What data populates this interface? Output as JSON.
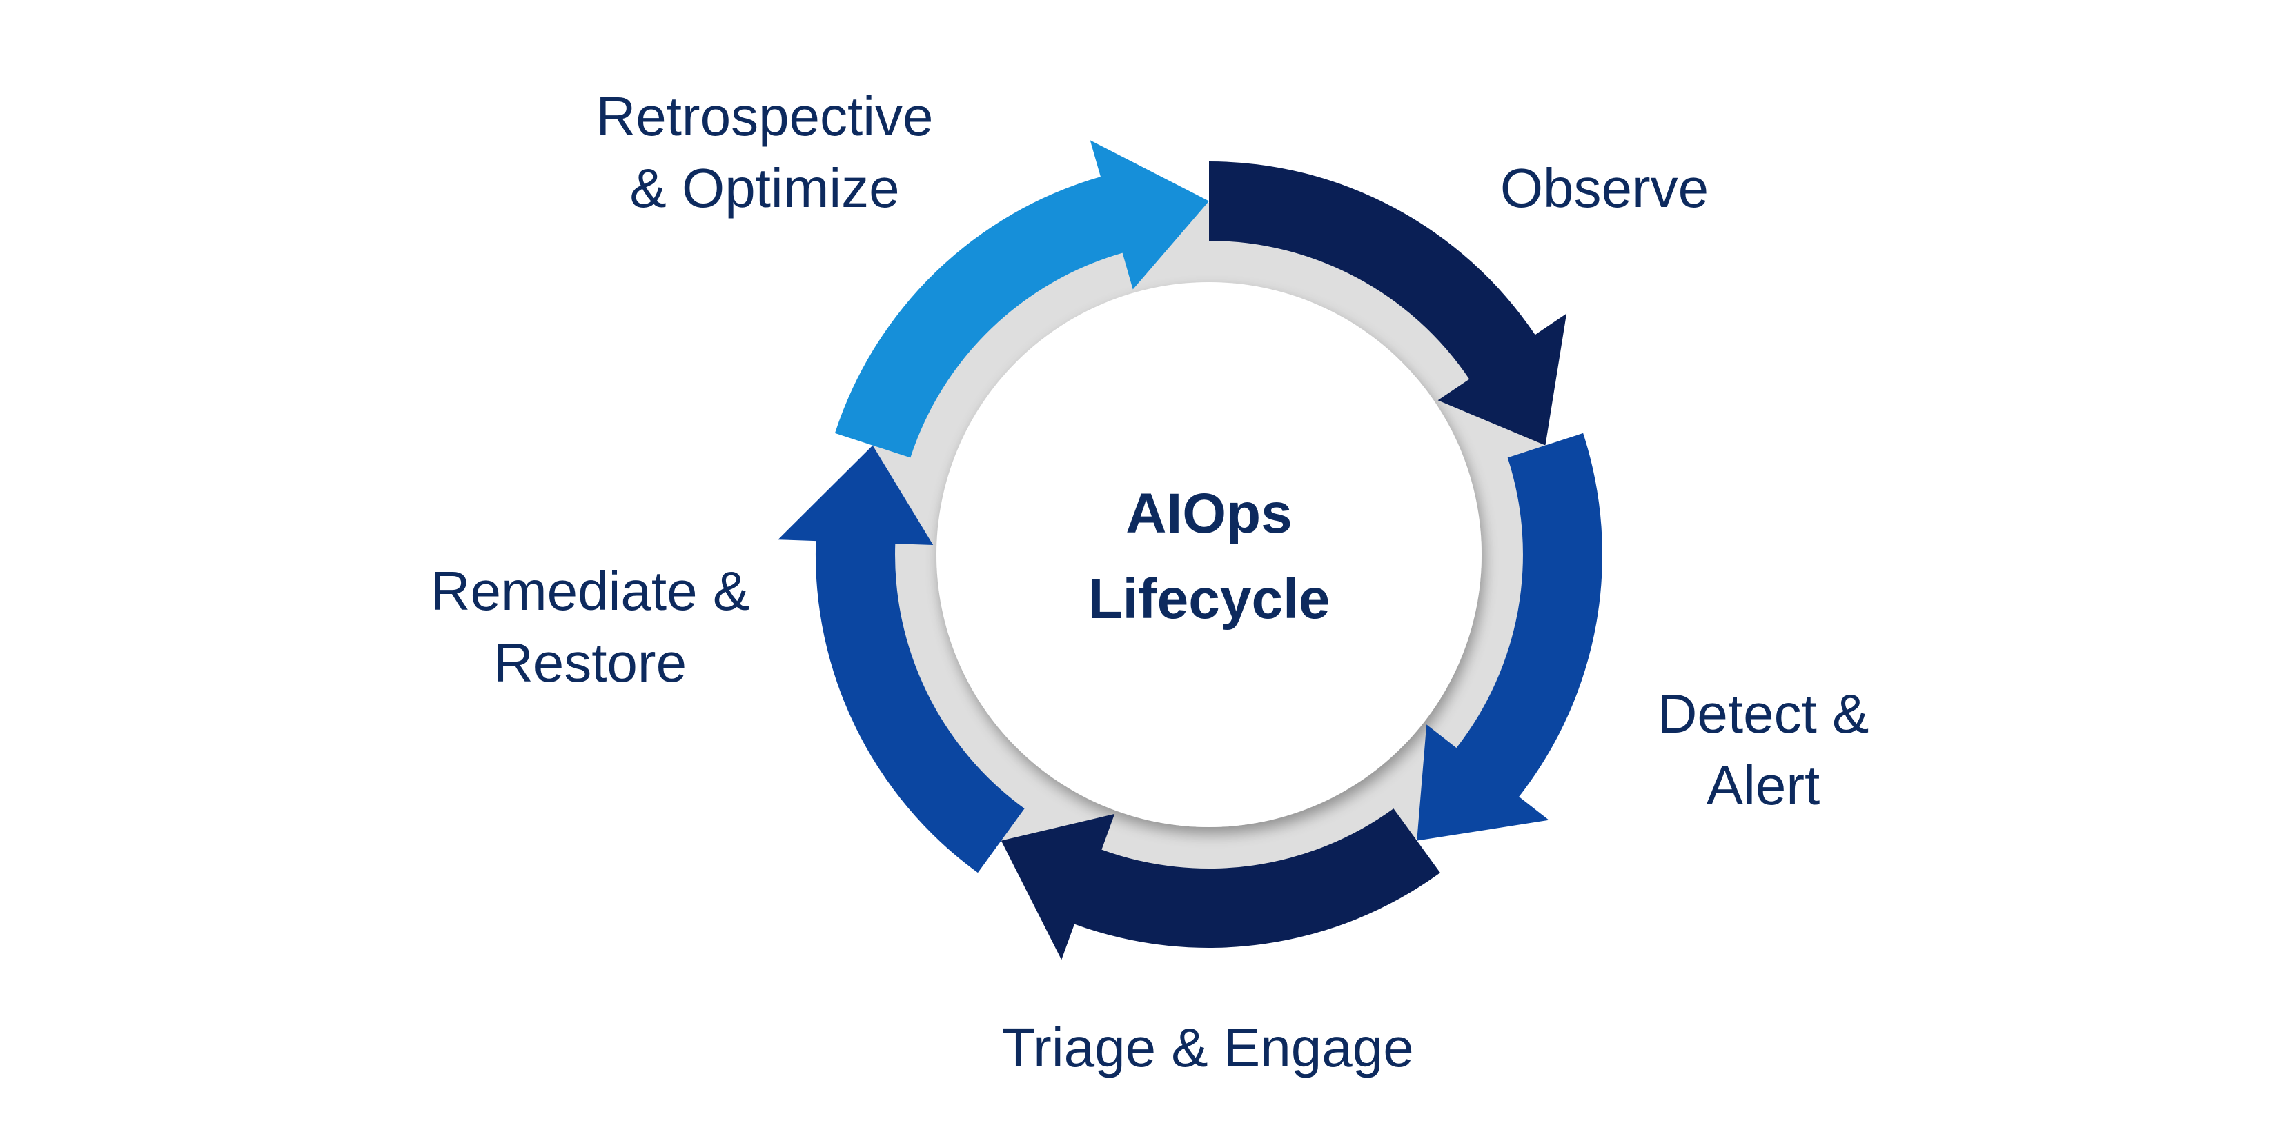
{
  "diagram": {
    "center_title": {
      "line1": "AIOps",
      "line2": "Lifecycle"
    },
    "stages": [
      {
        "id": "observe",
        "lines": [
          "Observe"
        ],
        "color": "#0a1f55"
      },
      {
        "id": "detect-alert",
        "lines": [
          "Detect &",
          "Alert"
        ],
        "color": "#0b46a1"
      },
      {
        "id": "triage-engage",
        "lines": [
          "Triage & Engage"
        ],
        "color": "#0a1f55"
      },
      {
        "id": "remediate-restore",
        "lines": [
          "Remediate &",
          "Restore"
        ],
        "color": "#0b46a1"
      },
      {
        "id": "retrospective-optimize",
        "lines": [
          "Retrospective",
          "& Optimize"
        ],
        "color": "#168fd9"
      }
    ],
    "colors": {
      "text": "#0d2a5e",
      "ring_track": "#dedede",
      "inner_disc": "#ffffff",
      "shadow": "#c9c9c9"
    }
  }
}
